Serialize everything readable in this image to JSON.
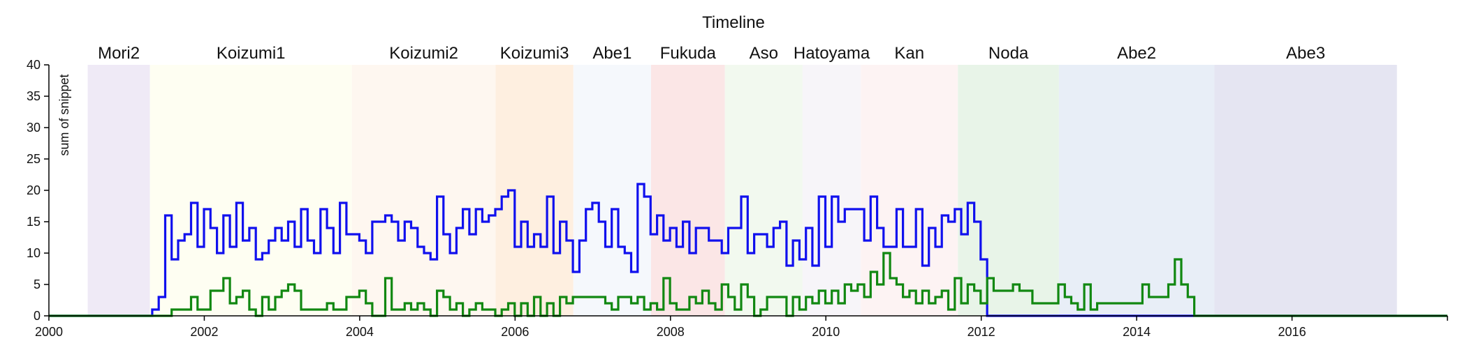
{
  "chart_data": {
    "type": "line",
    "title": "Timeline",
    "ylabel": "sum of snippet",
    "xlabel": "",
    "x_range": [
      2000,
      2018
    ],
    "ylim": [
      0,
      40
    ],
    "x_ticks": [
      2000,
      2002,
      2004,
      2006,
      2008,
      2010,
      2012,
      2014,
      2016
    ],
    "x_tick_labels": [
      "2000",
      "2002",
      "2004",
      "2006",
      "2008",
      "2010",
      "2012",
      "2014",
      "2016"
    ],
    "y_ticks": [
      0,
      5,
      10,
      15,
      20,
      25,
      30,
      35,
      40
    ],
    "y_tick_labels": [
      "0",
      "5",
      "10",
      "15",
      "20",
      "25",
      "30",
      "35",
      "40"
    ],
    "grid": false,
    "legend": "none",
    "periods": [
      {
        "label": "Mori2",
        "start": 2000.5,
        "end": 2001.3,
        "color": "#efeaf6"
      },
      {
        "label": "Koizumi1",
        "start": 2001.3,
        "end": 2003.9,
        "color": "#fefef2"
      },
      {
        "label": "Koizumi2",
        "start": 2003.9,
        "end": 2005.75,
        "color": "#fef7f0"
      },
      {
        "label": "Koizumi3",
        "start": 2005.75,
        "end": 2006.75,
        "color": "#feefe0"
      },
      {
        "label": "Abe1",
        "start": 2006.75,
        "end": 2007.75,
        "color": "#f5f8fc"
      },
      {
        "label": "Fukuda",
        "start": 2007.75,
        "end": 2008.7,
        "color": "#fbe6e6"
      },
      {
        "label": "Aso",
        "start": 2008.7,
        "end": 2009.7,
        "color": "#f2f9ef"
      },
      {
        "label": "Hatoyama",
        "start": 2009.7,
        "end": 2010.45,
        "color": "#f7f5f9"
      },
      {
        "label": "Kan",
        "start": 2010.45,
        "end": 2011.7,
        "color": "#fdf3f3"
      },
      {
        "label": "Noda",
        "start": 2011.7,
        "end": 2013.0,
        "color": "#e8f4e8"
      },
      {
        "label": "Abe2",
        "start": 2013.0,
        "end": 2015.0,
        "color": "#e8eef7"
      },
      {
        "label": "Abe3",
        "start": 2015.0,
        "end": 2017.35,
        "color": "#e5e5f2"
      }
    ],
    "series": [
      {
        "color": "#1010ee",
        "x0": 2001.33,
        "step": 0.0833,
        "values": [
          1,
          3,
          16,
          9,
          12,
          13,
          18,
          11,
          17,
          14,
          10,
          16,
          11,
          18,
          12,
          14,
          9,
          10,
          12,
          14,
          12,
          15,
          11,
          17,
          12,
          10,
          17,
          14,
          10,
          18,
          13,
          13,
          12,
          10,
          15,
          15,
          16,
          15,
          12,
          15,
          14,
          11,
          10,
          9,
          19,
          13,
          10,
          14,
          17,
          13,
          17,
          15,
          16,
          17,
          19,
          20,
          11,
          15,
          11,
          13,
          11,
          19,
          10,
          15,
          12,
          7,
          12,
          17,
          18,
          15,
          11,
          17,
          11,
          10,
          7,
          21,
          19,
          13,
          16,
          12,
          14,
          11,
          15,
          10,
          14,
          14,
          12,
          12,
          10,
          14,
          14,
          19,
          10,
          13,
          13,
          11,
          14,
          15,
          8,
          12,
          9,
          14,
          8,
          19,
          11,
          19,
          15,
          17,
          17,
          17,
          12,
          19,
          14,
          11,
          11,
          17,
          11,
          11,
          17,
          8,
          14,
          11,
          16,
          15,
          17,
          13,
          18,
          15,
          9,
          0,
          0,
          0,
          0,
          0,
          0,
          0,
          0,
          0,
          0,
          0,
          0,
          0,
          0,
          0,
          0,
          0,
          0,
          0,
          0,
          0,
          0,
          0,
          0,
          0,
          0,
          0,
          0,
          0,
          0,
          0,
          0,
          0,
          0,
          0,
          0,
          0,
          0,
          0,
          0,
          0,
          0,
          0,
          0,
          0,
          0,
          0,
          0,
          0,
          0,
          0,
          0,
          0,
          0,
          0,
          0,
          0,
          0,
          0,
          0,
          0,
          0,
          0,
          0,
          0,
          0,
          0,
          0,
          0,
          0,
          0
        ]
      },
      {
        "color": "#118811",
        "x0": 2001.33,
        "step": 0.0833,
        "values": [
          0,
          0,
          0,
          1,
          1,
          1,
          3,
          1,
          1,
          4,
          4,
          6,
          2,
          3,
          4,
          1,
          0,
          3,
          1,
          3,
          4,
          5,
          4,
          1,
          1,
          1,
          1,
          2,
          1,
          1,
          3,
          3,
          4,
          2,
          0,
          0,
          6,
          1,
          1,
          2,
          1,
          2,
          1,
          0,
          4,
          3,
          1,
          2,
          0,
          1,
          2,
          1,
          1,
          0,
          1,
          2,
          0,
          2,
          0,
          3,
          0,
          2,
          0,
          3,
          2,
          3,
          3,
          3,
          3,
          3,
          2,
          1,
          3,
          3,
          2,
          3,
          1,
          2,
          1,
          6,
          2,
          1,
          1,
          3,
          2,
          4,
          2,
          1,
          5,
          3,
          1,
          5,
          3,
          0,
          1,
          3,
          3,
          3,
          0,
          3,
          1,
          3,
          2,
          4,
          2,
          4,
          2,
          5,
          4,
          5,
          3,
          7,
          5,
          10,
          6,
          5,
          3,
          4,
          2,
          4,
          2,
          3,
          4,
          1,
          6,
          2,
          5,
          4,
          2,
          6,
          4,
          4,
          4,
          5,
          4,
          4,
          2,
          2,
          2,
          2,
          5,
          3,
          2,
          1,
          5,
          1,
          2,
          2,
          2,
          2,
          2,
          2,
          2,
          5,
          3,
          3,
          3,
          5,
          9,
          5,
          3,
          0,
          0,
          0,
          0,
          0,
          0,
          0,
          0,
          0,
          0,
          0,
          0,
          0,
          0,
          0,
          0,
          0,
          0,
          0,
          0,
          0,
          0,
          0,
          0,
          0,
          0,
          0,
          0,
          0,
          0,
          0,
          0,
          0,
          0,
          0,
          0,
          0,
          0,
          0,
          0,
          0,
          0,
          0,
          0,
          0,
          0,
          0,
          0,
          0,
          0,
          0,
          0,
          0,
          0
        ]
      }
    ]
  }
}
